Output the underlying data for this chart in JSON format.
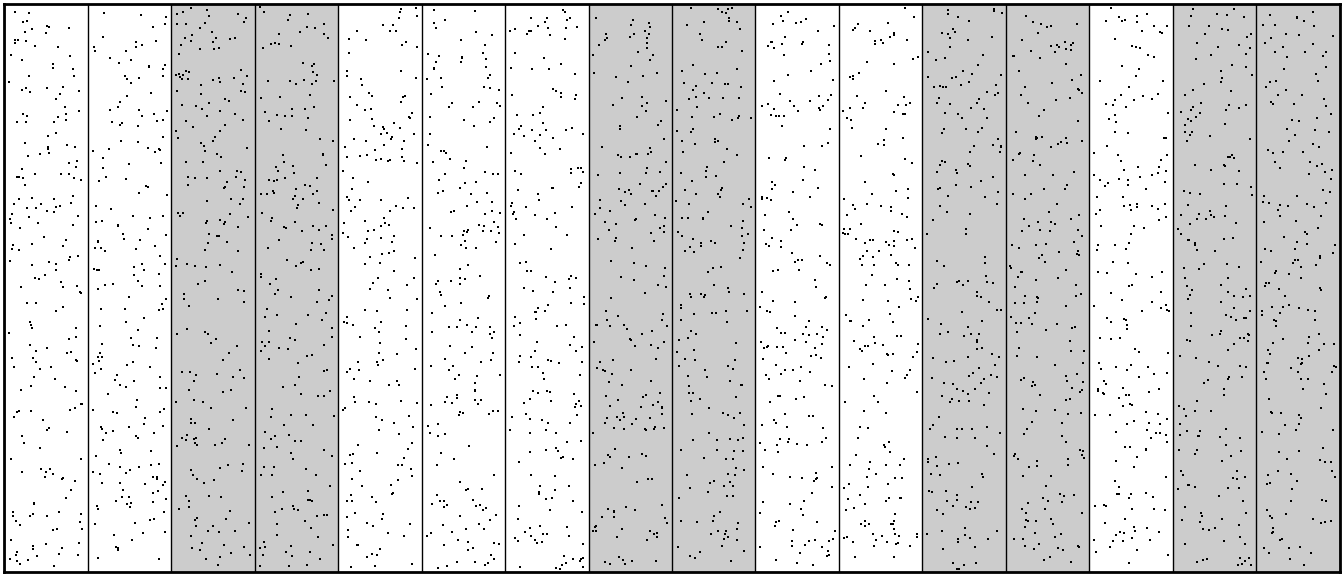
{
  "n_transects": 16,
  "selected_transects": [
    3,
    4,
    8,
    9,
    12,
    13,
    15,
    16
  ],
  "white_color": "#ffffff",
  "grey_color": "#cccccc",
  "border_color": "#000000",
  "dot_color": "#000000",
  "dot_marker": "s",
  "dot_size": 1.5,
  "n_dots_per_transect": 200,
  "seed": 42,
  "fig_width": 13.44,
  "fig_height": 5.76,
  "border_linewidth": 2.0,
  "transect_linewidth": 1.0,
  "xlim": [
    0,
    16
  ],
  "ylim": [
    0,
    10
  ]
}
